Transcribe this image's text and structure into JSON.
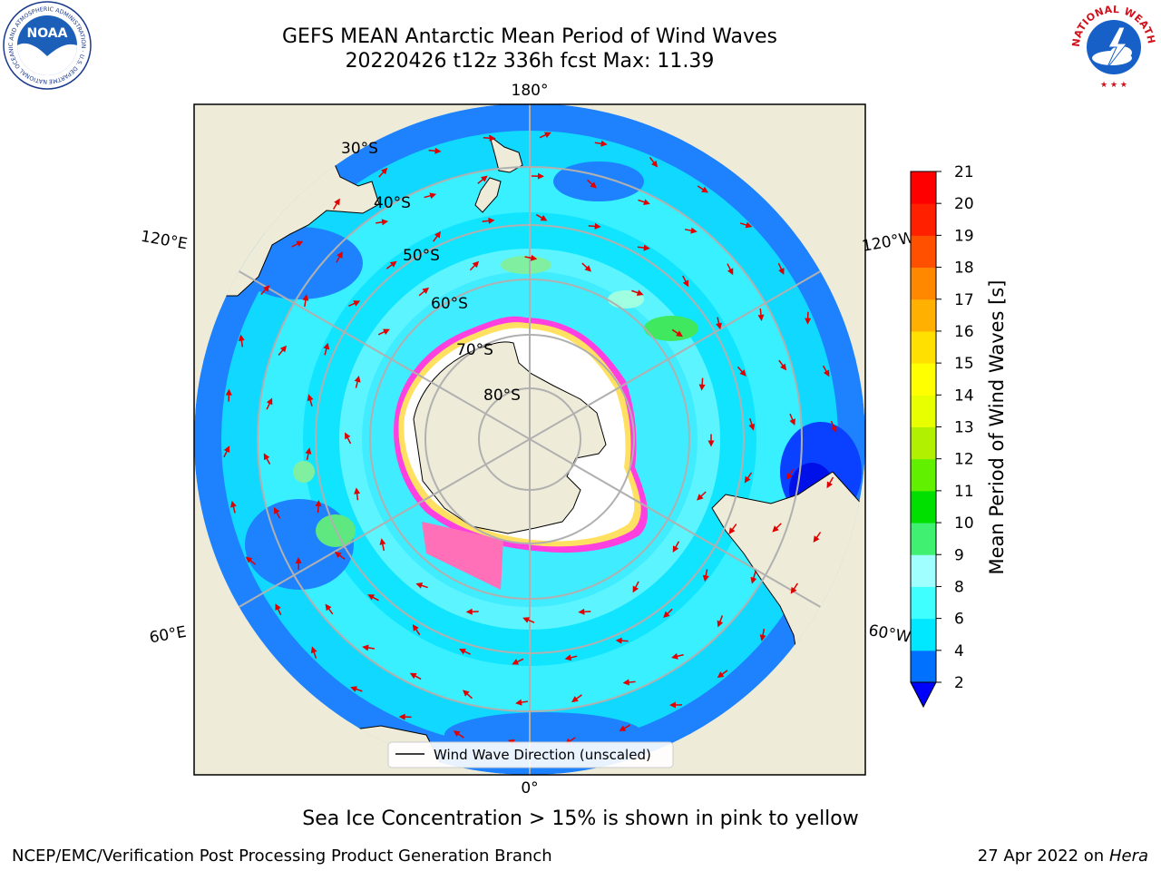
{
  "title": {
    "line1": "GEFS MEAN Antarctic Mean Period of Wind Waves",
    "line2": "20220426 t12z 336h fcst   Max: 11.39"
  },
  "map": {
    "projection": "south-polar-stereographic",
    "lon_labels": [
      "180°",
      "120°E",
      "120°W",
      "60°E",
      "60°W",
      "0°"
    ],
    "lat_labels": [
      "30°S",
      "40°S",
      "50°S",
      "60°S",
      "70°S",
      "80°S"
    ],
    "legend_label": "Wind Wave Direction (unscaled)",
    "vector_color": "#e00000"
  },
  "colorbar": {
    "label": "Mean Period of Wind Waves [s]",
    "ticks": [
      "2",
      "4",
      "6",
      "8",
      "9",
      "10",
      "11",
      "12",
      "13",
      "14",
      "15",
      "16",
      "17",
      "18",
      "19",
      "20",
      "21"
    ],
    "colors": [
      "#0070ff",
      "#00e8ff",
      "#40ffff",
      "#a0ffff",
      "#40f070",
      "#00e000",
      "#60f000",
      "#b0f000",
      "#e8ff00",
      "#ffff00",
      "#ffe000",
      "#ffb000",
      "#ff8800",
      "#ff5000",
      "#ff2000",
      "#ff0000"
    ],
    "under_color": "#0000ff"
  },
  "caption": "Sea Ice Concentration > 15% is shown in pink to yellow",
  "footer": {
    "left": "NCEP/EMC/Verification Post Processing Product Generation Branch",
    "right_prefix": "27 Apr 2022 on ",
    "right_host": "Hera"
  },
  "logos": {
    "noaa": "NOAA",
    "noaa_ring": "NATIONAL OCEANIC AND ATMOSPHERIC ADMINISTRATION · U.S. DEPARTMENT OF COMMERCE",
    "nws_ring": "NATIONAL WEATHER SERVICE"
  }
}
